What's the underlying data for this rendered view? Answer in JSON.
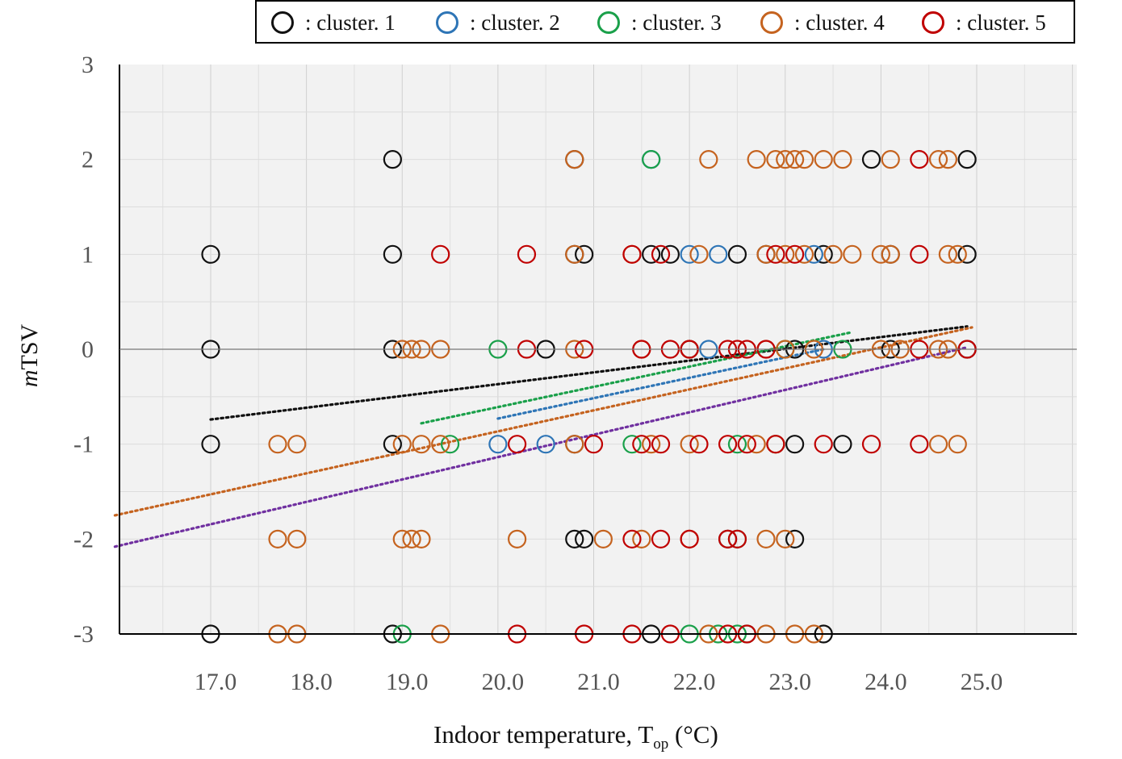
{
  "chart_data": {
    "type": "scatter",
    "title": "",
    "xlabel_main": "Indoor temperature, T",
    "xlabel_sub": "op",
    "xlabel_unit": " (°C)",
    "ylabel_italic": "m",
    "ylabel_rest": "TSV",
    "xlim": [
      16.0,
      26.0
    ],
    "ylim": [
      -3,
      3
    ],
    "xticks": [
      17.0,
      18.0,
      19.0,
      20.0,
      21.0,
      22.0,
      23.0,
      24.0,
      25.0
    ],
    "xtick_labels": [
      "17.0",
      "18.0",
      "19.0",
      "20.0",
      "21.0",
      "22.0",
      "23.0",
      "24.0",
      "25.0"
    ],
    "yticks": [
      3,
      2,
      1,
      0,
      -1,
      -2,
      -3
    ],
    "ytick_labels": [
      "3",
      "2",
      "1",
      "0",
      "-1",
      "-2",
      "-3"
    ],
    "grid": true,
    "legend_position": "top",
    "series": [
      {
        "name": ": cluster. 1",
        "color": "#111111",
        "points": [
          [
            17.0,
            1
          ],
          [
            17.0,
            0
          ],
          [
            17.0,
            -1
          ],
          [
            17.0,
            -3
          ],
          [
            18.9,
            2
          ],
          [
            18.9,
            1
          ],
          [
            18.9,
            0
          ],
          [
            18.9,
            -1
          ],
          [
            18.9,
            -3
          ],
          [
            20.5,
            0
          ],
          [
            20.8,
            2
          ],
          [
            20.8,
            1
          ],
          [
            20.9,
            1
          ],
          [
            20.8,
            -1
          ],
          [
            20.8,
            -2
          ],
          [
            20.9,
            -2
          ],
          [
            21.6,
            1
          ],
          [
            21.8,
            1
          ],
          [
            21.6,
            -3
          ],
          [
            22.0,
            0
          ],
          [
            22.5,
            1
          ],
          [
            22.4,
            -2
          ],
          [
            22.8,
            1
          ],
          [
            23.1,
            0
          ],
          [
            23.1,
            -1
          ],
          [
            23.1,
            -2
          ],
          [
            23.4,
            1
          ],
          [
            23.4,
            -3
          ],
          [
            23.6,
            -1
          ],
          [
            23.9,
            2
          ],
          [
            24.1,
            1
          ],
          [
            24.1,
            0
          ],
          [
            24.9,
            2
          ],
          [
            24.9,
            1
          ],
          [
            24.9,
            0
          ]
        ],
        "trend": {
          "x": [
            17.0,
            24.9
          ],
          "y": [
            -0.74,
            0.24
          ],
          "color": "#111111"
        }
      },
      {
        "name": ": cluster. 2",
        "color": "#2e75b6",
        "points": [
          [
            20.0,
            -1
          ],
          [
            20.5,
            -1
          ],
          [
            21.6,
            2
          ],
          [
            22.0,
            1
          ],
          [
            22.3,
            1
          ],
          [
            22.2,
            0
          ],
          [
            23.3,
            1
          ],
          [
            23.4,
            0
          ]
        ],
        "trend": {
          "x": [
            20.0,
            23.4
          ],
          "y": [
            -0.73,
            0.0
          ],
          "color": "#2e75b6"
        }
      },
      {
        "name": ": cluster. 3",
        "color": "#1aa04a",
        "points": [
          [
            20.0,
            0
          ],
          [
            19.5,
            -1
          ],
          [
            19.0,
            -3
          ],
          [
            21.6,
            2
          ],
          [
            21.4,
            -1
          ],
          [
            22.0,
            -3
          ],
          [
            22.3,
            -3
          ],
          [
            22.5,
            -3
          ],
          [
            22.5,
            -1
          ],
          [
            22.5,
            -2
          ],
          [
            22.6,
            -3
          ],
          [
            22.9,
            -1
          ],
          [
            23.0,
            0
          ],
          [
            23.6,
            0
          ]
        ],
        "trend": {
          "x": [
            19.2,
            23.7
          ],
          "y": [
            -0.78,
            0.18
          ],
          "color": "#1aa04a"
        }
      },
      {
        "name": ": cluster. 4",
        "color": "#c5631f",
        "points": [
          [
            17.7,
            -1
          ],
          [
            17.9,
            -1
          ],
          [
            17.7,
            -2
          ],
          [
            17.9,
            -2
          ],
          [
            17.7,
            -3
          ],
          [
            17.9,
            -3
          ],
          [
            19.0,
            0
          ],
          [
            19.1,
            0
          ],
          [
            19.2,
            0
          ],
          [
            19.4,
            0
          ],
          [
            19.0,
            -1
          ],
          [
            19.2,
            -1
          ],
          [
            19.4,
            -1
          ],
          [
            19.0,
            -2
          ],
          [
            19.1,
            -2
          ],
          [
            19.2,
            -2
          ],
          [
            19.4,
            -3
          ],
          [
            20.2,
            -2
          ],
          [
            20.8,
            1
          ],
          [
            20.8,
            0
          ],
          [
            20.8,
            -1
          ],
          [
            20.8,
            2
          ],
          [
            21.1,
            -2
          ],
          [
            21.4,
            1
          ],
          [
            21.5,
            0
          ],
          [
            21.5,
            -2
          ],
          [
            21.6,
            -1
          ],
          [
            22.2,
            2
          ],
          [
            22.1,
            1
          ],
          [
            22.0,
            0
          ],
          [
            22.0,
            -1
          ],
          [
            22.0,
            -2
          ],
          [
            22.2,
            -3
          ],
          [
            22.7,
            2
          ],
          [
            22.9,
            2
          ],
          [
            23.0,
            2
          ],
          [
            23.1,
            2
          ],
          [
            23.2,
            2
          ],
          [
            23.4,
            2
          ],
          [
            23.6,
            2
          ],
          [
            22.8,
            1
          ],
          [
            23.0,
            1
          ],
          [
            23.2,
            1
          ],
          [
            23.5,
            1
          ],
          [
            23.7,
            1
          ],
          [
            22.8,
            0
          ],
          [
            23.0,
            0
          ],
          [
            23.3,
            0
          ],
          [
            22.7,
            -1
          ],
          [
            22.9,
            -1
          ],
          [
            22.8,
            -2
          ],
          [
            23.0,
            -2
          ],
          [
            22.8,
            -3
          ],
          [
            23.1,
            -3
          ],
          [
            23.3,
            -3
          ],
          [
            24.1,
            2
          ],
          [
            24.6,
            2
          ],
          [
            24.7,
            2
          ],
          [
            24.1,
            1
          ],
          [
            24.0,
            1
          ],
          [
            24.7,
            1
          ],
          [
            24.8,
            1
          ],
          [
            24.0,
            0
          ],
          [
            24.2,
            0
          ],
          [
            24.6,
            0
          ],
          [
            24.7,
            0
          ],
          [
            24.6,
            -1
          ],
          [
            24.8,
            -1
          ]
        ],
        "trend": {
          "x": [
            16.0,
            24.95
          ],
          "y": [
            -1.75,
            0.23
          ],
          "color": "#c5631f"
        }
      },
      {
        "name": ": cluster. 5",
        "color": "#c00000",
        "points": [
          [
            19.4,
            1
          ],
          [
            20.3,
            1
          ],
          [
            20.3,
            0
          ],
          [
            20.2,
            -1
          ],
          [
            20.2,
            -3
          ],
          [
            20.9,
            0
          ],
          [
            21.0,
            -1
          ],
          [
            20.9,
            -3
          ],
          [
            21.4,
            1
          ],
          [
            21.7,
            1
          ],
          [
            21.5,
            0
          ],
          [
            21.8,
            0
          ],
          [
            21.5,
            -1
          ],
          [
            21.7,
            -1
          ],
          [
            21.4,
            -2
          ],
          [
            21.7,
            -2
          ],
          [
            21.4,
            -3
          ],
          [
            21.8,
            -3
          ],
          [
            22.0,
            0
          ],
          [
            22.1,
            -1
          ],
          [
            22.0,
            -2
          ],
          [
            22.4,
            0
          ],
          [
            22.5,
            0
          ],
          [
            22.6,
            0
          ],
          [
            22.4,
            -1
          ],
          [
            22.6,
            -1
          ],
          [
            22.4,
            -2
          ],
          [
            22.5,
            -2
          ],
          [
            22.4,
            -3
          ],
          [
            22.6,
            -3
          ],
          [
            22.8,
            0
          ],
          [
            22.9,
            1
          ],
          [
            23.1,
            1
          ],
          [
            22.9,
            -1
          ],
          [
            23.4,
            -1
          ],
          [
            23.9,
            -1
          ],
          [
            24.4,
            1
          ],
          [
            24.4,
            2
          ],
          [
            24.4,
            -1
          ],
          [
            24.4,
            0
          ],
          [
            24.9,
            0
          ]
        ],
        "trend": {
          "x": [
            16.0,
            24.9
          ],
          "y": [
            -2.08,
            0.02
          ],
          "color": "#7030a0"
        }
      }
    ]
  }
}
